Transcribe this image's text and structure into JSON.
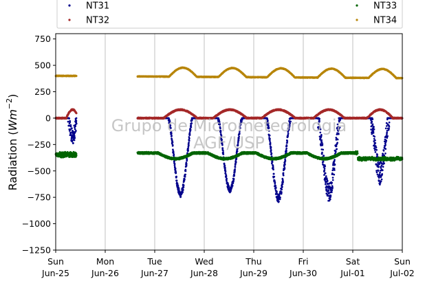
{
  "chart_data": {
    "type": "scatter",
    "ylabel_main": "Radiation (",
    "ylabel_unit_base": "Wm",
    "ylabel_unit_exp": "−2",
    "ylabel_close": ")",
    "ylim": [
      -1250,
      800
    ],
    "yticks": [
      750,
      500,
      250,
      0,
      -250,
      -500,
      -750,
      -1000,
      -1250
    ],
    "ytick_labels": [
      "750",
      "500",
      "250",
      "0",
      "−250",
      "−500",
      "−750",
      "−1000",
      "−1250"
    ],
    "xlim": [
      0,
      7
    ],
    "xticks": [
      0,
      1,
      2,
      3,
      4,
      5,
      6,
      7
    ],
    "xtick_labels_day": [
      "Sun",
      "Mon",
      "Tue",
      "Wed",
      "Thu",
      "Fri",
      "Sat",
      "Sun"
    ],
    "xtick_labels_date": [
      "Jun-25",
      "Jun-26",
      "Jun-27",
      "Jun-28",
      "Jun-29",
      "Jun-30",
      "Jul-01",
      "Jul-02"
    ],
    "grid": "vertical",
    "legend_placement": "top",
    "watermark_line1": "Grupo de Micrometeorologia",
    "watermark_line2": "AGF/USP",
    "gaps": [
      [
        0.42,
        1.65
      ]
    ],
    "series": [
      {
        "name": "NT31",
        "color": "#00008b"
      },
      {
        "name": "NT32",
        "color": "#a52a2a"
      },
      {
        "name": "NT33",
        "color": "#006400"
      },
      {
        "name": "NT34",
        "color": "#b8860b"
      }
    ]
  }
}
